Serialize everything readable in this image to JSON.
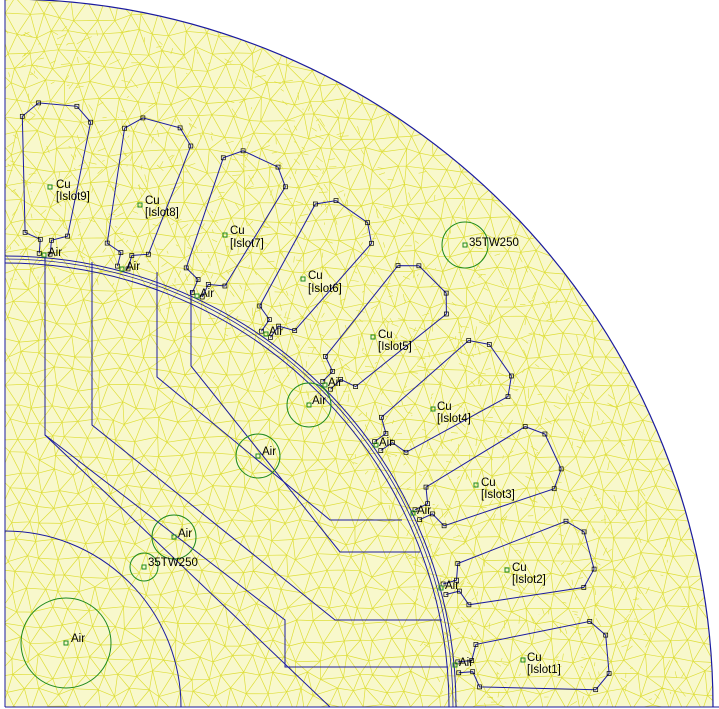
{
  "colors": {
    "background": "#ffffff",
    "mesh": "#dede3a",
    "mesh_fill": "#f8f8cc",
    "geometry": "#1a1aa0",
    "block_marker": "#1d8a1d",
    "label_text": "#000000"
  },
  "slots": [
    {
      "material": "Cu",
      "circuit": "[Islot1]"
    },
    {
      "material": "Cu",
      "circuit": "[Islot2]"
    },
    {
      "material": "Cu",
      "circuit": "[Islot3]"
    },
    {
      "material": "Cu",
      "circuit": "[Islot4]"
    },
    {
      "material": "Cu",
      "circuit": "[Islot5]"
    },
    {
      "material": "Cu",
      "circuit": "[Islot6]"
    },
    {
      "material": "Cu",
      "circuit": "[Islot7]"
    },
    {
      "material": "Cu",
      "circuit": "[Islot8]"
    },
    {
      "material": "Cu",
      "circuit": "[Islot9]"
    }
  ],
  "air_gap_labels": [
    "Air",
    "Air",
    "Air",
    "Air",
    "Air",
    "Air",
    "Air",
    "Air",
    "Air"
  ],
  "rotor_labels": [
    "Air",
    "Air",
    "Air",
    "Air"
  ],
  "steel_labels": {
    "stator": "35TW250",
    "rotor": "35TW250"
  }
}
